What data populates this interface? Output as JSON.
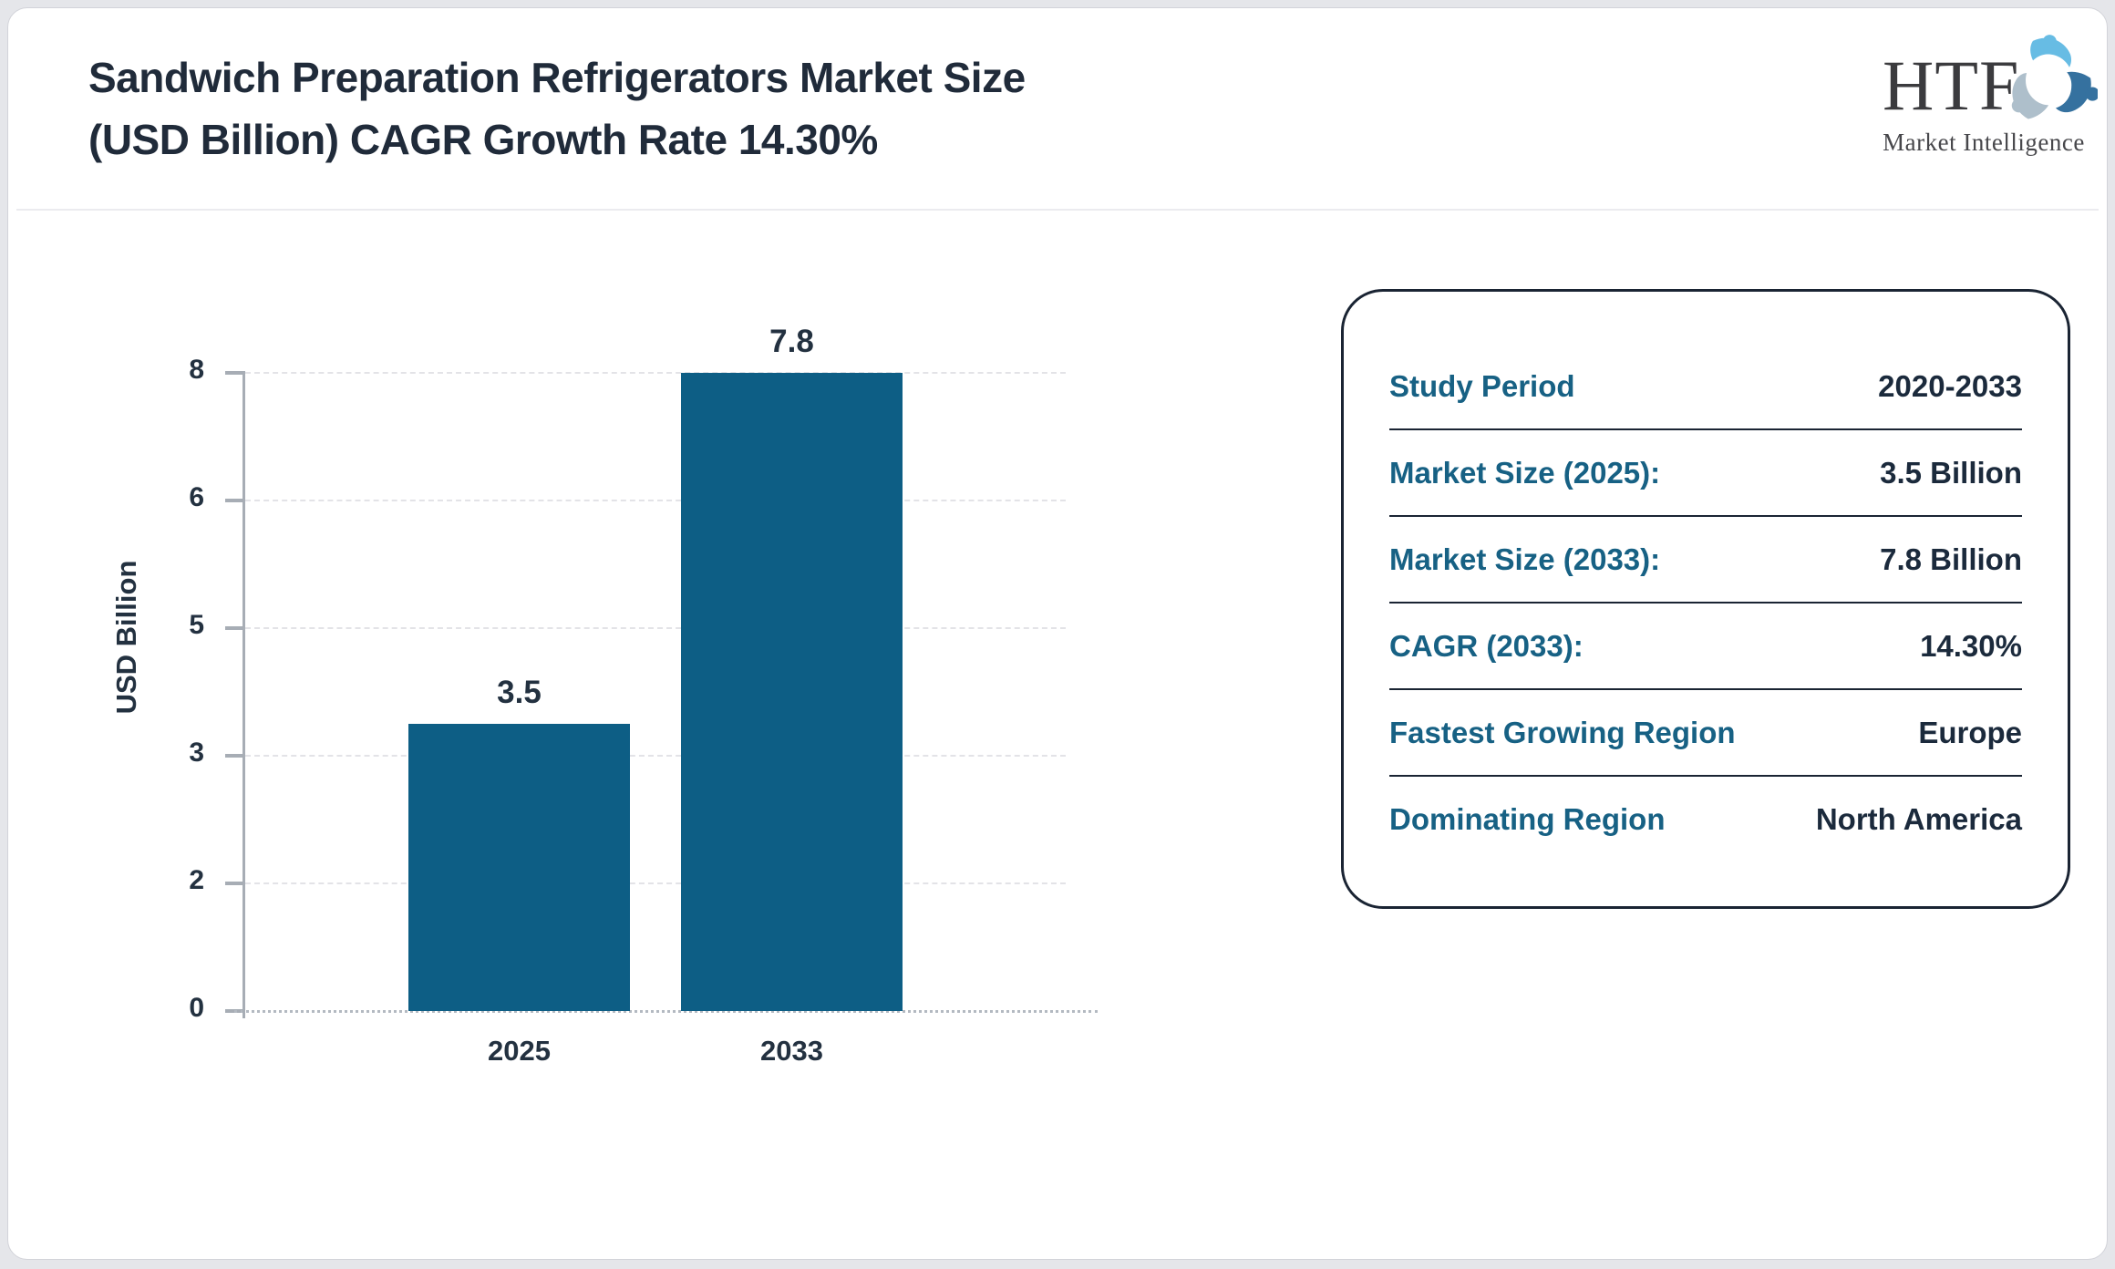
{
  "header": {
    "title_line1": "Sandwich Preparation Refrigerators Market Size",
    "title_line2": "(USD Billion) CAGR Growth Rate 14.30%",
    "logo": {
      "text": "HTF",
      "subtext": "Market Intelligence",
      "icon": "three-figures-swirl-icon",
      "icon_colors": [
        "#67bce4",
        "#aebfcb",
        "#35719f"
      ]
    }
  },
  "chart_data": {
    "type": "bar",
    "title": "",
    "categories": [
      "2025",
      "2033"
    ],
    "values": [
      3.5,
      7.8
    ],
    "bar_labels": [
      "3.5",
      "7.8"
    ],
    "xlabel": "",
    "ylabel": "USD Billion",
    "yticks": [
      0,
      2,
      3,
      5,
      6,
      8
    ],
    "ylim": [
      0,
      8
    ],
    "bar_color": "#0d5e85",
    "grid": "horizontal-dashed",
    "legend": "none",
    "layout_note": "y ticks rendered evenly spaced"
  },
  "info_card": {
    "rows": [
      {
        "label": "Study Period",
        "value": "2020-2033"
      },
      {
        "label": "Market Size (2025):",
        "value": "3.5 Billion"
      },
      {
        "label": "Market Size (2033):",
        "value": "7.8 Billion"
      },
      {
        "label": "CAGR (2033):",
        "value": "14.30%"
      },
      {
        "label": "Fastest Growing Region",
        "value": "Europe"
      },
      {
        "label": "Dominating Region",
        "value": "North America"
      }
    ]
  },
  "colors": {
    "accent_teal": "#0d5e85",
    "label_teal": "#176184",
    "dark_navy": "#202b3a",
    "axis_gray": "#a7adb5",
    "grid_gray": "#e3e3e7",
    "page_margin_gray": "#e5e6ea",
    "card_border": "#1a2433"
  }
}
